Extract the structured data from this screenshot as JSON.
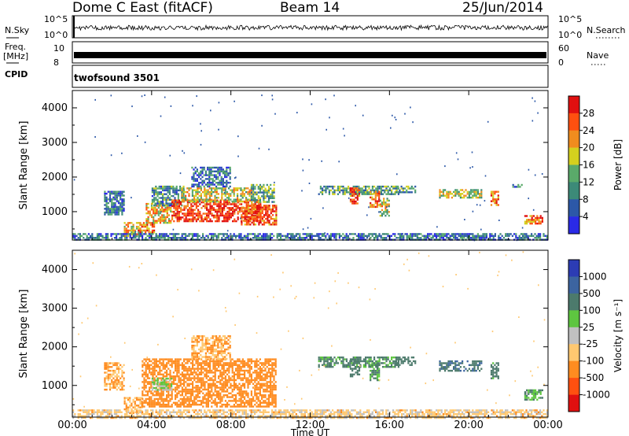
{
  "header": {
    "radar": "Dome C East (fitACF)",
    "beam": "Beam 14",
    "date": "25/Jun/2014"
  },
  "status": {
    "nsky_label": "N.Sky",
    "nsky_ticks": [
      "10^5",
      "10^0"
    ],
    "nsearch_label": "N.Search",
    "freq_label_1": "Freq.",
    "freq_label_2": "[MHz]",
    "freq_ticks": [
      "10",
      "8"
    ],
    "nave_label": "Nave",
    "nave_ticks": [
      "60",
      "0"
    ],
    "cpid_label": "CPID",
    "program": "twofsound 3501"
  },
  "axes": {
    "x_label": "Time UT",
    "x_ticks": [
      "00:00",
      "04:00",
      "08:00",
      "12:00",
      "16:00",
      "20:00",
      "00:00"
    ],
    "x_tick_hours": [
      0,
      4,
      8,
      12,
      16,
      20,
      24
    ],
    "y_label": "Slant Range [km]",
    "y_ticks": [
      1000,
      2000,
      3000,
      4000
    ],
    "y_range_km": [
      180,
      4500
    ],
    "x_range_hours": [
      0,
      24
    ]
  },
  "chart_data": [
    {
      "type": "heatmap",
      "quantity": "Power",
      "colorbar_label": "Power [dB]",
      "colorbar_ticks": [
        "4",
        "8",
        "12",
        "16",
        "20",
        "24",
        "28"
      ],
      "value_range": [
        0,
        32
      ],
      "colors": [
        "#2a2ae6",
        "#2c58a8",
        "#3c8a78",
        "#5aaa6a",
        "#d4d01e",
        "#f08c1e",
        "#ff5010",
        "#e01010"
      ],
      "regions": [
        {
          "t": [
            1.6,
            2.6
          ],
          "r": [
            900,
            1600
          ],
          "level": 8
        },
        {
          "t": [
            2.6,
            3.5
          ],
          "r": [
            300,
            700
          ],
          "level": 20
        },
        {
          "t": [
            3.3,
            4.1
          ],
          "r": [
            400,
            700
          ],
          "level": 24
        },
        {
          "t": [
            3.7,
            5.0
          ],
          "r": [
            650,
            1250
          ],
          "level": 20
        },
        {
          "t": [
            4.0,
            5.6
          ],
          "r": [
            1150,
            1750
          ],
          "level": 10
        },
        {
          "t": [
            5.0,
            9.5
          ],
          "r": [
            700,
            1350
          ],
          "level": 28
        },
        {
          "t": [
            5.5,
            9.0
          ],
          "r": [
            1300,
            1700
          ],
          "level": 18
        },
        {
          "t": [
            6.0,
            8.0
          ],
          "r": [
            1700,
            2300
          ],
          "level": 8
        },
        {
          "t": [
            8.5,
            10.3
          ],
          "r": [
            650,
            1200
          ],
          "level": 26
        },
        {
          "t": [
            9.0,
            10.2
          ],
          "r": [
            1300,
            1800
          ],
          "level": 12
        },
        {
          "t": [
            12.4,
            16.5
          ],
          "r": [
            1500,
            1750
          ],
          "level": 12
        },
        {
          "t": [
            14.0,
            14.5
          ],
          "r": [
            1250,
            1700
          ],
          "level": 26
        },
        {
          "t": [
            15.0,
            15.5
          ],
          "r": [
            1150,
            1600
          ],
          "level": 24
        },
        {
          "t": [
            15.5,
            16.0
          ],
          "r": [
            900,
            1400
          ],
          "level": 18
        },
        {
          "t": [
            16.3,
            17.3
          ],
          "r": [
            1550,
            1750
          ],
          "level": 12
        },
        {
          "t": [
            18.5,
            20.6
          ],
          "r": [
            1400,
            1650
          ],
          "level": 16
        },
        {
          "t": [
            21.1,
            21.5
          ],
          "r": [
            1200,
            1600
          ],
          "level": 24
        },
        {
          "t": [
            22.2,
            22.7
          ],
          "r": [
            1700,
            1800
          ],
          "level": 8
        },
        {
          "t": [
            22.8,
            23.7
          ],
          "r": [
            650,
            900
          ],
          "level": 24
        },
        {
          "t": [
            0,
            24
          ],
          "r": [
            180,
            380
          ],
          "level": 8
        }
      ]
    },
    {
      "type": "heatmap",
      "quantity": "Velocity",
      "colorbar_label": "Velocity [m s⁻¹]",
      "colorbar_ticks": [
        "1000",
        "500",
        "100",
        "25",
        "-25",
        "-100",
        "-500",
        "-1000"
      ],
      "value_range": [
        -1000,
        1000
      ],
      "colors": [
        "#2c3cb4",
        "#3c64a0",
        "#4c7a6c",
        "#5ec640",
        "#c0c0c0",
        "#ffc870",
        "#ff8c20",
        "#ff5010",
        "#e01010"
      ],
      "regions": [
        {
          "t": [
            1.6,
            2.6
          ],
          "r": [
            900,
            1600
          ],
          "v": -100
        },
        {
          "t": [
            2.6,
            3.5
          ],
          "r": [
            300,
            700
          ],
          "v": -100
        },
        {
          "t": [
            3.5,
            10.3
          ],
          "r": [
            450,
            1700
          ],
          "v": -300
        },
        {
          "t": [
            6.0,
            8.0
          ],
          "r": [
            1700,
            2300
          ],
          "v": -100
        },
        {
          "t": [
            4.0,
            5.0
          ],
          "r": [
            900,
            1200
          ],
          "v": 25
        },
        {
          "t": [
            12.4,
            16.5
          ],
          "r": [
            1500,
            1750
          ],
          "v": 150
        },
        {
          "t": [
            14.0,
            14.5
          ],
          "r": [
            1250,
            1700
          ],
          "v": 300
        },
        {
          "t": [
            15.0,
            15.5
          ],
          "r": [
            1150,
            1600
          ],
          "v": 150
        },
        {
          "t": [
            16.3,
            17.3
          ],
          "r": [
            1550,
            1750
          ],
          "v": 300
        },
        {
          "t": [
            18.5,
            20.6
          ],
          "r": [
            1400,
            1650
          ],
          "v": 400
        },
        {
          "t": [
            21.1,
            21.5
          ],
          "r": [
            1200,
            1600
          ],
          "v": 200
        },
        {
          "t": [
            22.8,
            23.7
          ],
          "r": [
            650,
            900
          ],
          "v": 80
        },
        {
          "t": [
            0,
            24
          ],
          "r": [
            180,
            380
          ],
          "v": -50
        }
      ]
    }
  ]
}
